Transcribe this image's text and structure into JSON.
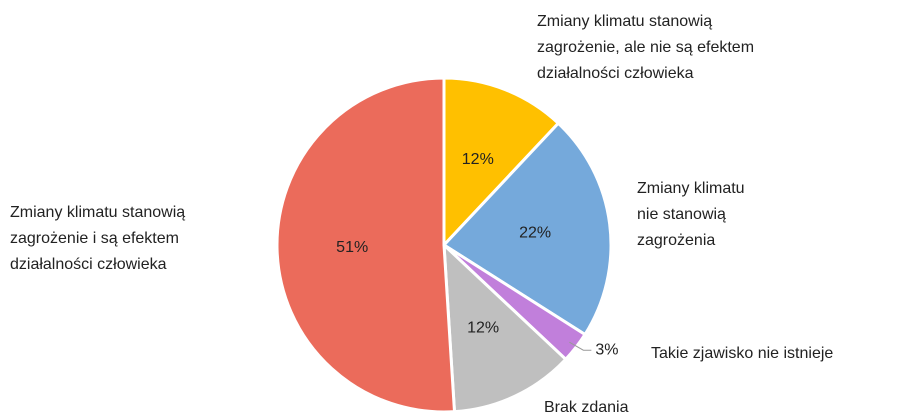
{
  "chart_data": {
    "type": "pie",
    "categories": [
      "Zmiany klimatu stanowią\nzagrożenie, ale nie są efektem\ndziałalności człowieka",
      "Zmiany klimatu\nnie stanowią\nzagrożenia",
      "Takie zjawisko nie istnieje",
      "Brak zdania",
      "Zmiany klimatu stanowią\nzagrożenie i są efektem\ndziałalności człowieka"
    ],
    "values": [
      12,
      22,
      3,
      12,
      51
    ],
    "value_labels": [
      "12%",
      "22%",
      "3%",
      "12%",
      "51%"
    ],
    "colors": [
      "#FFC000",
      "#75A9DB",
      "#C17FDB",
      "#BFBFBF",
      "#EB6B5B"
    ]
  }
}
